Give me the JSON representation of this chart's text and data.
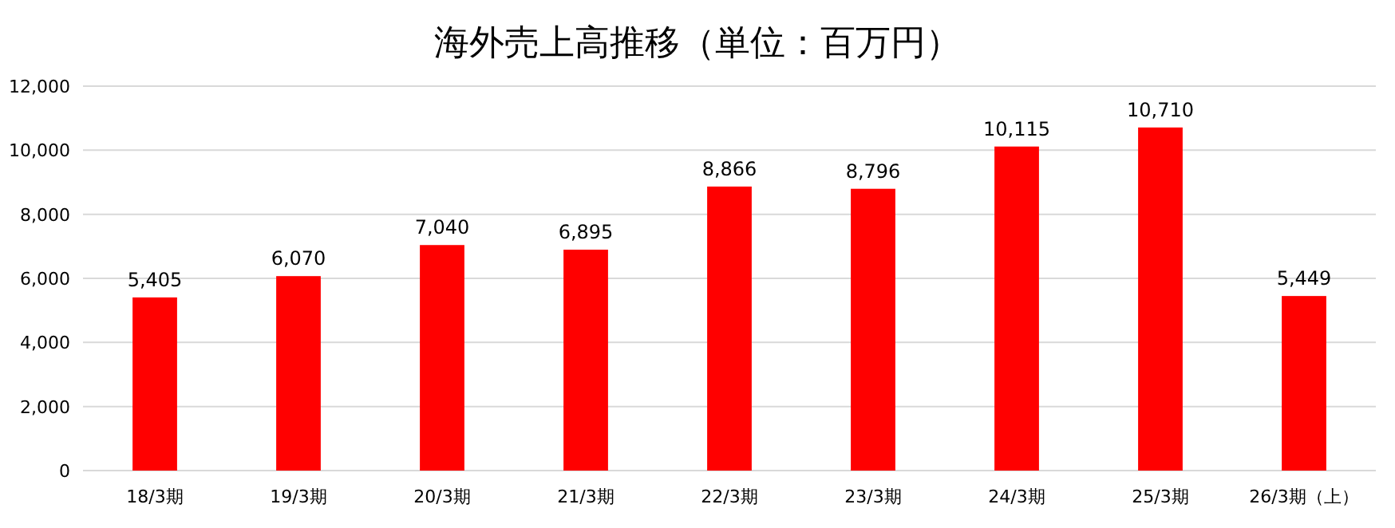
{
  "chart_data": {
    "type": "bar",
    "title": "海外売上高推移（単位：百万円）",
    "categories": [
      "18/3期",
      "19/3期",
      "20/3期",
      "21/3期",
      "22/3期",
      "23/3期",
      "24/3期",
      "25/3期",
      "26/3期（上）"
    ],
    "values": [
      5405,
      6070,
      7040,
      6895,
      8866,
      8796,
      10115,
      10710,
      5449
    ],
    "value_labels": [
      "5,405",
      "6,070",
      "7,040",
      "6,895",
      "8,866",
      "8,796",
      "10,115",
      "10,710",
      "5,449"
    ],
    "color": "#ff0000",
    "ylim": [
      0,
      12000
    ],
    "yticks": [
      {
        "value": 0,
        "label": "0"
      },
      {
        "value": 2000,
        "label": "2,000"
      },
      {
        "value": 4000,
        "label": "4,000"
      },
      {
        "value": 6000,
        "label": "6,000"
      },
      {
        "value": 8000,
        "label": "8,000"
      },
      {
        "value": 10000,
        "label": "10,000"
      },
      {
        "value": 12000,
        "label": "12,000"
      }
    ],
    "grid": "y"
  }
}
